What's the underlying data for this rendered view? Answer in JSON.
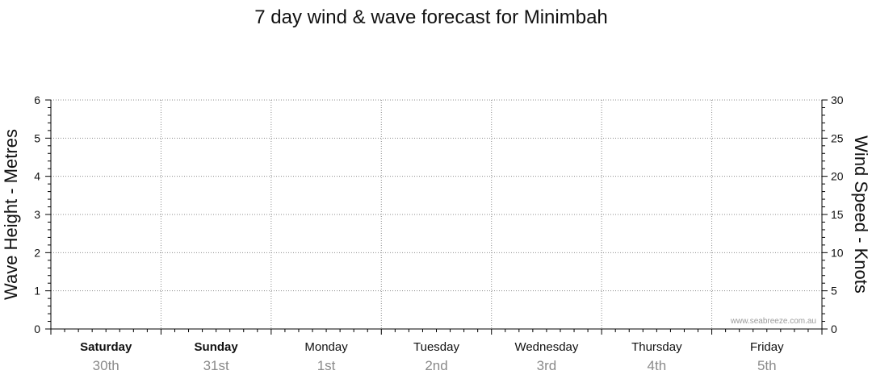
{
  "chart_data": {
    "type": "line",
    "title": "7 day wind & wave forecast for Minimbah",
    "y_left": {
      "label": "Wave Height - Metres",
      "range": [
        0,
        6
      ],
      "ticks": [
        0,
        1,
        2,
        3,
        4,
        5,
        6
      ]
    },
    "y_right": {
      "label": "Wind Speed - Knots",
      "range": [
        0,
        30
      ],
      "ticks": [
        0,
        5,
        10,
        15,
        20,
        25,
        30
      ]
    },
    "days": [
      {
        "name": "Saturday",
        "date": "30th",
        "bold": true
      },
      {
        "name": "Sunday",
        "date": "31st",
        "bold": true
      },
      {
        "name": "Monday",
        "date": "1st",
        "bold": false
      },
      {
        "name": "Tuesday",
        "date": "2nd",
        "bold": false
      },
      {
        "name": "Wednesday",
        "date": "3rd",
        "bold": false
      },
      {
        "name": "Thursday",
        "date": "4th",
        "bold": false
      },
      {
        "name": "Friday",
        "date": "5th",
        "bold": false
      }
    ],
    "series": [],
    "grid": true
  },
  "credit": "www.seabreeze.com.au",
  "colors": {
    "grid": "#8c8c8c",
    "axis": "#000000",
    "date_text": "#8a8a8a",
    "credit_text": "#9a9a9a"
  }
}
